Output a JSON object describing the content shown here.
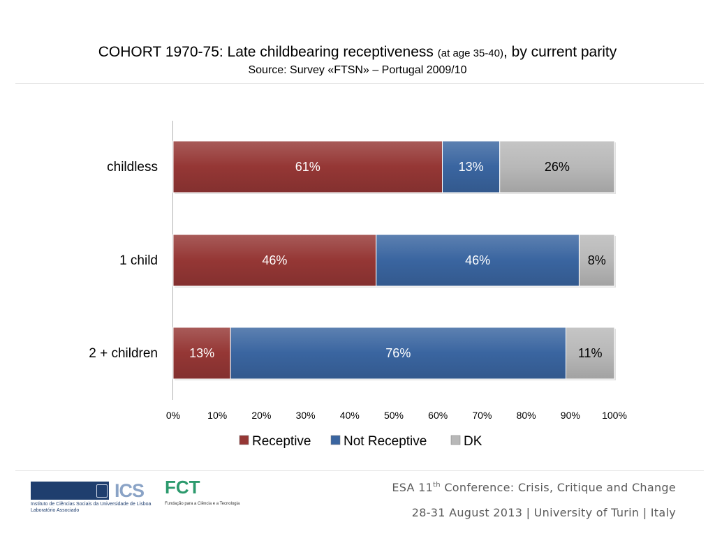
{
  "slide": {
    "title_main": "COHORT 1970-75: Late childbearing receptiveness",
    "title_small": "(at age 35-40)",
    "title_end": ", by current parity",
    "subtitle": "Source: Survey «FTSN» – Portugal 2009/10"
  },
  "chart_data": {
    "type": "bar",
    "orientation": "horizontal",
    "stacked": true,
    "categories": [
      "childless",
      "1 child",
      "2 + children"
    ],
    "series": [
      {
        "name": "Receptive",
        "values": [
          61,
          46,
          13
        ],
        "labels": [
          "61%",
          "46%",
          "13%"
        ],
        "color": "#953735",
        "label_color": "#ffffff"
      },
      {
        "name": "Not Receptive",
        "values": [
          13,
          46,
          76
        ],
        "labels": [
          "13%",
          "46%",
          "76%"
        ],
        "color": "#3a65a0",
        "label_color": "#ffffff"
      },
      {
        "name": "DK",
        "values": [
          26,
          8,
          11
        ],
        "labels": [
          "26%",
          "8%",
          "11%"
        ],
        "color": "#b8b8b8",
        "label_color": "#000000"
      }
    ],
    "x_ticks": [
      "0%",
      "10%",
      "20%",
      "30%",
      "40%",
      "50%",
      "60%",
      "70%",
      "80%",
      "90%",
      "100%"
    ],
    "xlim": [
      0,
      100
    ],
    "grid": false,
    "legend_position": "bottom"
  },
  "footer": {
    "conference_prefix": "ESA 11",
    "conference_sup": "th",
    "conference_suffix": " Conference: Crisis, Critique and Change",
    "dates_place": "28-31 August 2013 | University of Turin | Italy",
    "ics_logo_text": "ICS",
    "ics_caption_line1": "Instituto de Ciências Sociais da Universidade de Lisboa",
    "ics_caption_line2": "Laboratório Associado",
    "fct_logo_text": "FCT",
    "fct_caption": "Fundação para a Ciência e a Tecnologia"
  }
}
